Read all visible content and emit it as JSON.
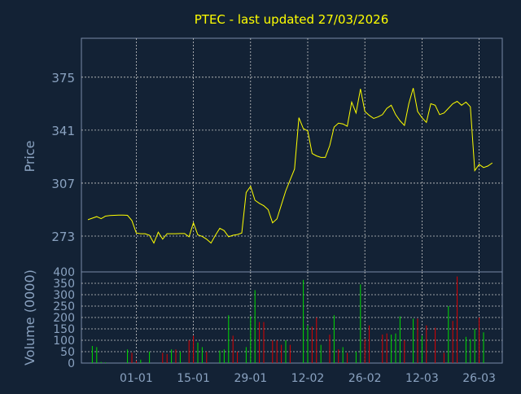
{
  "chart_data": [
    {
      "type": "line",
      "title": "PTEC - last updated 27/03/2026",
      "ylabel": "Price",
      "ylim": [
        250,
        400
      ],
      "yticks": [
        "273",
        "307",
        "341",
        "375"
      ],
      "xticks": [
        "01-01",
        "15-01",
        "29-01",
        "12-02",
        "26-02",
        "12-03",
        "26-03"
      ],
      "grid": true,
      "series": [
        {
          "color": "#ffff00",
          "x": [
            0,
            1,
            2,
            3,
            4,
            5,
            6,
            7,
            8,
            9,
            10,
            11,
            12,
            13,
            14,
            15,
            16,
            17,
            18,
            19,
            20,
            21,
            22,
            23,
            24,
            25,
            26,
            27,
            28,
            29,
            30,
            31,
            32,
            33,
            34,
            35,
            36,
            37,
            38,
            39,
            40,
            41,
            42,
            43,
            44,
            45,
            46,
            47,
            48,
            49,
            50,
            51,
            52,
            53,
            54,
            55,
            56,
            57,
            58,
            59,
            60,
            61,
            62,
            63,
            64,
            65,
            66,
            67,
            68,
            69,
            70,
            71,
            72,
            73,
            74,
            75,
            76,
            77,
            78,
            79,
            80,
            81,
            82,
            83,
            84,
            85,
            86,
            87,
            88,
            89,
            90,
            91,
            92
          ],
          "values": [
            283.5,
            284.5,
            285.5,
            284.2,
            285.8,
            286.2,
            286.3,
            286.5,
            286.5,
            286.3,
            283,
            275,
            274.5,
            274.5,
            273.5,
            268.5,
            275.5,
            271,
            274.5,
            274.5,
            274.5,
            274.6,
            274.6,
            272.5,
            281.5,
            273.8,
            272.8,
            271,
            268.5,
            273.5,
            278,
            276.5,
            272.5,
            273.5,
            274,
            275,
            301,
            305,
            296,
            294,
            292.5,
            290,
            281.5,
            284,
            293,
            302,
            309,
            316,
            349,
            342,
            340.5,
            326,
            324.5,
            323.5,
            323.5,
            331,
            343,
            345.5,
            345,
            343.5,
            359,
            352,
            367.5,
            353,
            350.5,
            348.5,
            349.5,
            351,
            355,
            357,
            351,
            347,
            344,
            358,
            368,
            353,
            349,
            346,
            358,
            357,
            351,
            352,
            355,
            358,
            359.5,
            357,
            359,
            356,
            315,
            319,
            317,
            318,
            320
          ]
        }
      ]
    },
    {
      "type": "bar",
      "ylabel": "Volume (0000)",
      "ylim": [
        0,
        400
      ],
      "yticks": [
        "0",
        "50",
        "100",
        "150",
        "200",
        "250",
        "300",
        "350",
        "400"
      ],
      "up_color": "#00dd00",
      "down_color": "#dd0000",
      "volumes": [
        0,
        75,
        70,
        5,
        3,
        0,
        0,
        0,
        0,
        60,
        45,
        10,
        15,
        0,
        50,
        0,
        0,
        45,
        40,
        60,
        60,
        50,
        0,
        100,
        120,
        90,
        70,
        50,
        0,
        0,
        55,
        60,
        210,
        120,
        50,
        0,
        70,
        205,
        320,
        180,
        180,
        0,
        100,
        100,
        80,
        100,
        80,
        0,
        0,
        365,
        165,
        160,
        200,
        80,
        0,
        125,
        210,
        60,
        70,
        45,
        0,
        50,
        345,
        105,
        165,
        0,
        0,
        125,
        130,
        125,
        130,
        205,
        100,
        0,
        195,
        195,
        120,
        165,
        0,
        155,
        0,
        45,
        250,
        185,
        380,
        0,
        115,
        105,
        150,
        200,
        135,
        0,
        0
      ],
      "up": [
        true,
        true,
        true,
        true,
        true,
        true,
        true,
        true,
        true,
        true,
        false,
        false,
        true,
        true,
        true,
        false,
        true,
        false,
        false,
        true,
        false,
        true,
        true,
        false,
        false,
        true,
        true,
        false,
        true,
        true,
        true,
        true,
        true,
        false,
        false,
        true,
        true,
        true,
        true,
        false,
        false,
        false,
        false,
        false,
        false,
        true,
        false,
        false,
        true,
        true,
        true,
        false,
        false,
        true,
        true,
        false,
        true,
        false,
        true,
        false,
        true,
        true,
        true,
        false,
        false,
        true,
        true,
        false,
        false,
        true,
        true,
        true,
        false,
        true,
        true,
        false,
        true,
        false,
        false,
        false,
        true,
        false,
        true,
        false,
        false,
        true,
        true,
        true,
        true,
        false,
        true,
        true,
        true
      ]
    }
  ]
}
